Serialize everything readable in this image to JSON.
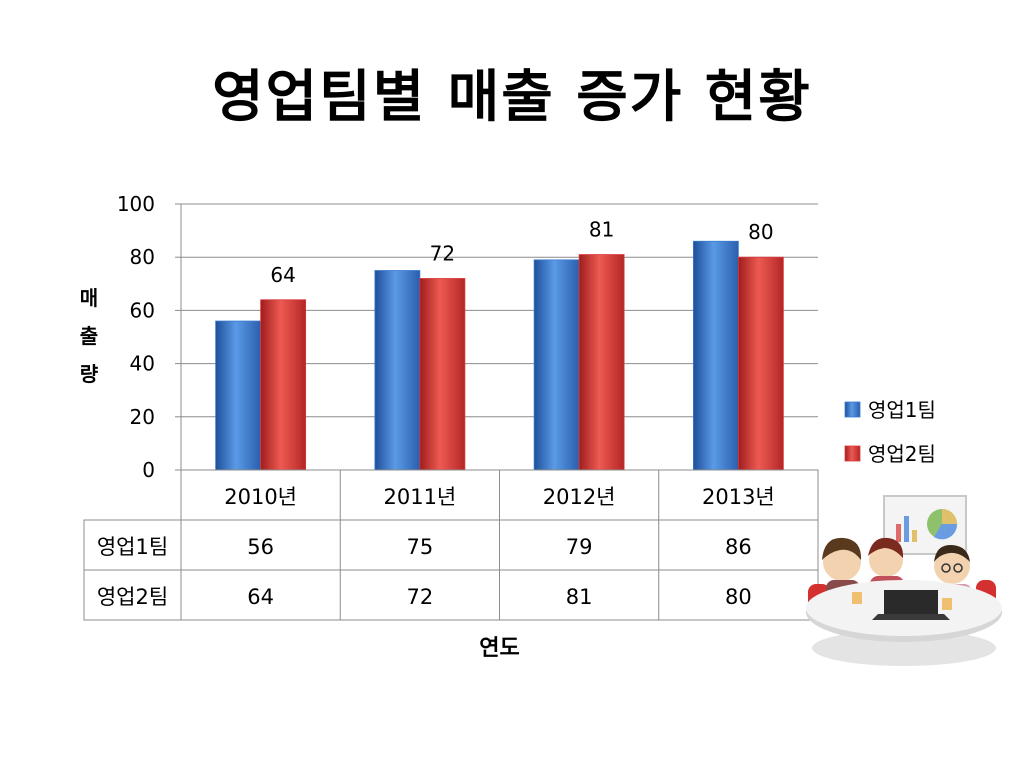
{
  "slide": {
    "title": "영업팀별 매출 증가 현황"
  },
  "chart_data": {
    "type": "bar",
    "title": "",
    "xlabel": "연도",
    "ylabel": "매출량",
    "ylim": [
      0,
      100
    ],
    "yticks": [
      0,
      20,
      40,
      60,
      80,
      100
    ],
    "grid": true,
    "legend": "right",
    "categories": [
      "2010년",
      "2011년",
      "2012년",
      "2013년"
    ],
    "series": [
      {
        "name": "영업1팀",
        "values": [
          56,
          75,
          79,
          86
        ],
        "color": "#3a7bd0",
        "show_labels": false
      },
      {
        "name": "영업2팀",
        "values": [
          64,
          72,
          81,
          80
        ],
        "color": "#d93a3a",
        "show_labels": true
      }
    ],
    "data_table": true
  },
  "illustration": {
    "icon": "meeting-people-icon"
  }
}
